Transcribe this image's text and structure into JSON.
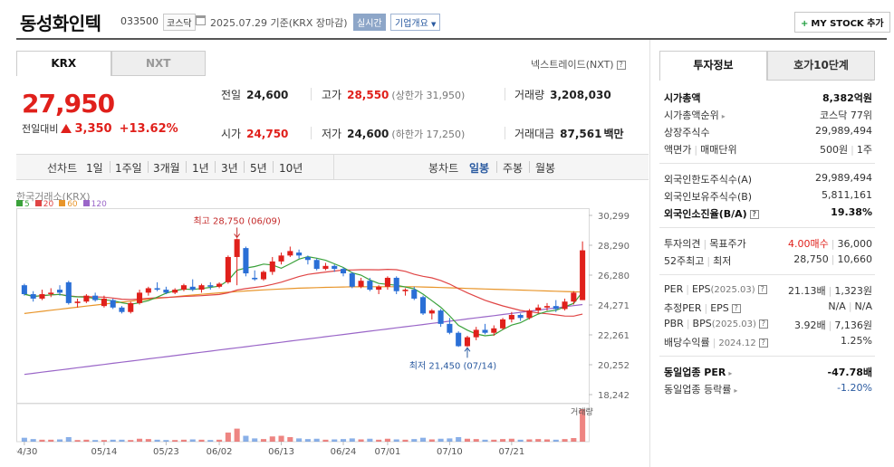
{
  "header": {
    "title": "동성화인텍",
    "code": "033500",
    "market": "코스닥",
    "date": "2025.07.29",
    "basis": "기준(KRX 장마감)",
    "realtime": "실시간",
    "company_info": "기업개요",
    "mystock": "MY STOCK 추가"
  },
  "tabs": {
    "krx": "KRX",
    "nxt": "NXT",
    "nxt_link": "넥스트레이드(NXT)"
  },
  "price": {
    "current": "27,950",
    "change_label": "전일대비",
    "change_amount": "3,350",
    "change_pct": "+13.62%"
  },
  "quote": {
    "prev": {
      "label": "전일",
      "value": "24,600"
    },
    "high": {
      "label": "고가",
      "value": "28,550",
      "sub": "(상한가 31,950)"
    },
    "volume": {
      "label": "거래량",
      "value": "3,208,030"
    },
    "open": {
      "label": "시가",
      "value": "24,750"
    },
    "low": {
      "label": "저가",
      "value": "24,600",
      "sub": "(하한가 17,250)"
    },
    "amount": {
      "label": "거래대금",
      "value": "87,561",
      "unit": "백만"
    }
  },
  "chart_bar": {
    "line_label": "선차트",
    "periods": [
      "1일",
      "1주일",
      "3개월",
      "1년",
      "3년",
      "5년",
      "10년"
    ],
    "candle_label": "봉차트",
    "candle": [
      "일봉",
      "주봉",
      "월봉"
    ]
  },
  "chart_source": "한국거래소(KRX)",
  "colors": {
    "up": "#e0201b",
    "down": "#2a6fd6",
    "ma5": "#3aa13a",
    "ma20": "#e04545",
    "ma60": "#e8952a",
    "ma120": "#9a66c8"
  },
  "chart_data": {
    "type": "candlestick",
    "legend": [
      {
        "name": "5",
        "color": "#3aa13a"
      },
      {
        "name": "20",
        "color": "#e04545"
      },
      {
        "name": "60",
        "color": "#e8952a"
      },
      {
        "name": "120",
        "color": "#9a66c8"
      }
    ],
    "y_ticks": [
      "30,299",
      "28,290",
      "26,280",
      "24,271",
      "22,261",
      "20,252",
      "18,242"
    ],
    "y_tick_values": [
      30299,
      28290,
      26280,
      24271,
      22261,
      20252,
      18242
    ],
    "ylim": [
      18242,
      30299
    ],
    "x_labels": [
      {
        "label": "04/30",
        "index": 0
      },
      {
        "label": "05/14",
        "index": 9
      },
      {
        "label": "05/23",
        "index": 16
      },
      {
        "label": "06/02",
        "index": 22
      },
      {
        "label": "06/13",
        "index": 29
      },
      {
        "label": "06/24",
        "index": 36
      },
      {
        "label": "07/01",
        "index": 41
      },
      {
        "label": "07/10",
        "index": 48
      },
      {
        "label": "07/21",
        "index": 55
      }
    ],
    "max_annotation": {
      "text": "최고 28,750 (06/09)",
      "index": 24,
      "value": 28750
    },
    "min_annotation": {
      "text": "최저 21,450 (07/14)",
      "index": 50,
      "value": 21450
    },
    "volume_label": "거래량",
    "candles": [
      [
        25600,
        25000,
        25700,
        24900
      ],
      [
        25000,
        24700,
        25200,
        24500
      ],
      [
        24700,
        25000,
        25300,
        24600
      ],
      [
        25000,
        25100,
        25400,
        24800
      ],
      [
        25300,
        25100,
        25600,
        24900
      ],
      [
        25800,
        24400,
        25900,
        24300
      ],
      [
        24400,
        24500,
        24700,
        24100
      ],
      [
        24500,
        24900,
        25000,
        24400
      ],
      [
        24900,
        24600,
        25100,
        24500
      ],
      [
        24200,
        24700,
        24900,
        24100
      ],
      [
        24600,
        24100,
        24700,
        24000
      ],
      [
        24100,
        23800,
        24200,
        23700
      ],
      [
        23800,
        24400,
        24500,
        23700
      ],
      [
        24400,
        25100,
        25300,
        24300
      ],
      [
        25100,
        25400,
        25500,
        24900
      ],
      [
        25400,
        25300,
        25800,
        25200
      ],
      [
        25300,
        25100,
        25500,
        25000
      ],
      [
        25100,
        25300,
        25400,
        25000
      ],
      [
        25300,
        25600,
        25700,
        25200
      ],
      [
        25500,
        25300,
        26000,
        25200
      ],
      [
        25300,
        25600,
        25700,
        25100
      ],
      [
        25600,
        25500,
        25800,
        25300
      ],
      [
        25500,
        25700,
        25800,
        25400
      ],
      [
        25800,
        27500,
        27600,
        25700
      ],
      [
        27500,
        28700,
        28750,
        25600
      ],
      [
        28100,
        26400,
        28200,
        26200
      ],
      [
        26100,
        26000,
        26600,
        25900
      ],
      [
        26000,
        26500,
        26600,
        25900
      ],
      [
        26500,
        27200,
        27500,
        26300
      ],
      [
        27200,
        27600,
        27800,
        27000
      ],
      [
        27600,
        27900,
        28200,
        27500
      ],
      [
        27800,
        27600,
        28000,
        27400
      ],
      [
        27500,
        27300,
        27600,
        27000
      ],
      [
        27300,
        26700,
        27400,
        26600
      ],
      [
        26700,
        26900,
        27100,
        26600
      ],
      [
        26900,
        26700,
        27000,
        26500
      ],
      [
        26700,
        26400,
        26800,
        26200
      ],
      [
        26400,
        25500,
        26500,
        25400
      ],
      [
        25500,
        25900,
        26100,
        25400
      ],
      [
        25900,
        25300,
        26100,
        25200
      ],
      [
        25300,
        25500,
        25600,
        25000
      ],
      [
        25500,
        26100,
        26200,
        25300
      ],
      [
        26100,
        25200,
        26200,
        25000
      ],
      [
        25200,
        25300,
        25400,
        24900
      ],
      [
        25300,
        24700,
        25500,
        24600
      ],
      [
        24800,
        23700,
        24900,
        23600
      ],
      [
        23700,
        23900,
        24000,
        23300
      ],
      [
        23900,
        23000,
        24000,
        22800
      ],
      [
        23000,
        22400,
        23400,
        22300
      ],
      [
        22400,
        21500,
        22500,
        21450
      ],
      [
        21500,
        22100,
        22200,
        21450
      ],
      [
        22100,
        22600,
        22800,
        21900
      ],
      [
        22600,
        22400,
        23000,
        22300
      ],
      [
        22400,
        22700,
        22900,
        22200
      ],
      [
        22700,
        23300,
        23400,
        22600
      ],
      [
        23300,
        23600,
        23800,
        23100
      ],
      [
        23600,
        23400,
        23700,
        23200
      ],
      [
        23400,
        23900,
        24000,
        23300
      ],
      [
        23900,
        24100,
        24300,
        23700
      ],
      [
        24100,
        24200,
        24400,
        23900
      ],
      [
        24200,
        24000,
        24600,
        23800
      ],
      [
        24000,
        24500,
        24700,
        23900
      ],
      [
        24500,
        25100,
        25200,
        24300
      ],
      [
        24600,
        27950,
        28550,
        24600
      ]
    ],
    "volume": [
      12,
      8,
      6,
      6,
      7,
      14,
      5,
      6,
      5,
      5,
      6,
      6,
      5,
      9,
      8,
      6,
      5,
      5,
      6,
      7,
      6,
      5,
      6,
      28,
      40,
      18,
      10,
      8,
      16,
      18,
      14,
      10,
      8,
      9,
      6,
      7,
      8,
      10,
      7,
      9,
      6,
      9,
      7,
      6,
      8,
      12,
      7,
      9,
      10,
      14,
      9,
      8,
      6,
      6,
      8,
      9,
      6,
      7,
      8,
      7,
      6,
      8,
      11,
      100
    ]
  },
  "right_tabs": {
    "invest": "투자정보",
    "quote10": "호가10단계"
  },
  "invest": {
    "market_cap": {
      "label": "시가총액",
      "value": "8,382억원"
    },
    "market_cap_rank": {
      "label": "시가총액순위",
      "value": "코스닥 77위"
    },
    "shares": {
      "label": "상장주식수",
      "value": "29,989,494"
    },
    "face": {
      "label": "액면가",
      "label2": "매매단위",
      "value": "500원",
      "value2": "1주"
    },
    "foreign_limit": {
      "label": "외국인한도주식수(A)",
      "value": "29,989,494"
    },
    "foreign_hold": {
      "label": "외국인보유주식수(B)",
      "value": "5,811,161"
    },
    "foreign_ratio": {
      "label": "외국인소진율(B/A)",
      "value": "19.38%"
    },
    "opinion": {
      "label": "투자의견",
      "label2": "목표주가",
      "value": "4.00매수",
      "value2": "36,000"
    },
    "week52": {
      "label": "52주최고",
      "label2": "최저",
      "value": "28,750",
      "value2": "10,660"
    },
    "per": {
      "label": "PER",
      "label2": "EPS",
      "period": "(2025.03)",
      "value": "21.13배",
      "value2": "1,323원"
    },
    "est_per": {
      "label": "추정PER",
      "label2": "EPS",
      "value": "N/A",
      "value2": "N/A"
    },
    "pbr": {
      "label": "PBR",
      "label2": "BPS",
      "period": "(2025.03)",
      "value": "3.92배",
      "value2": "7,136원"
    },
    "dividend": {
      "label": "배당수익률",
      "period": "2024.12",
      "value": "1.25%"
    },
    "industry_per": {
      "label": "동일업종 PER",
      "value": "-47.78배"
    },
    "industry_change": {
      "label": "동일업종 등락률",
      "value": "-1.20%"
    }
  }
}
